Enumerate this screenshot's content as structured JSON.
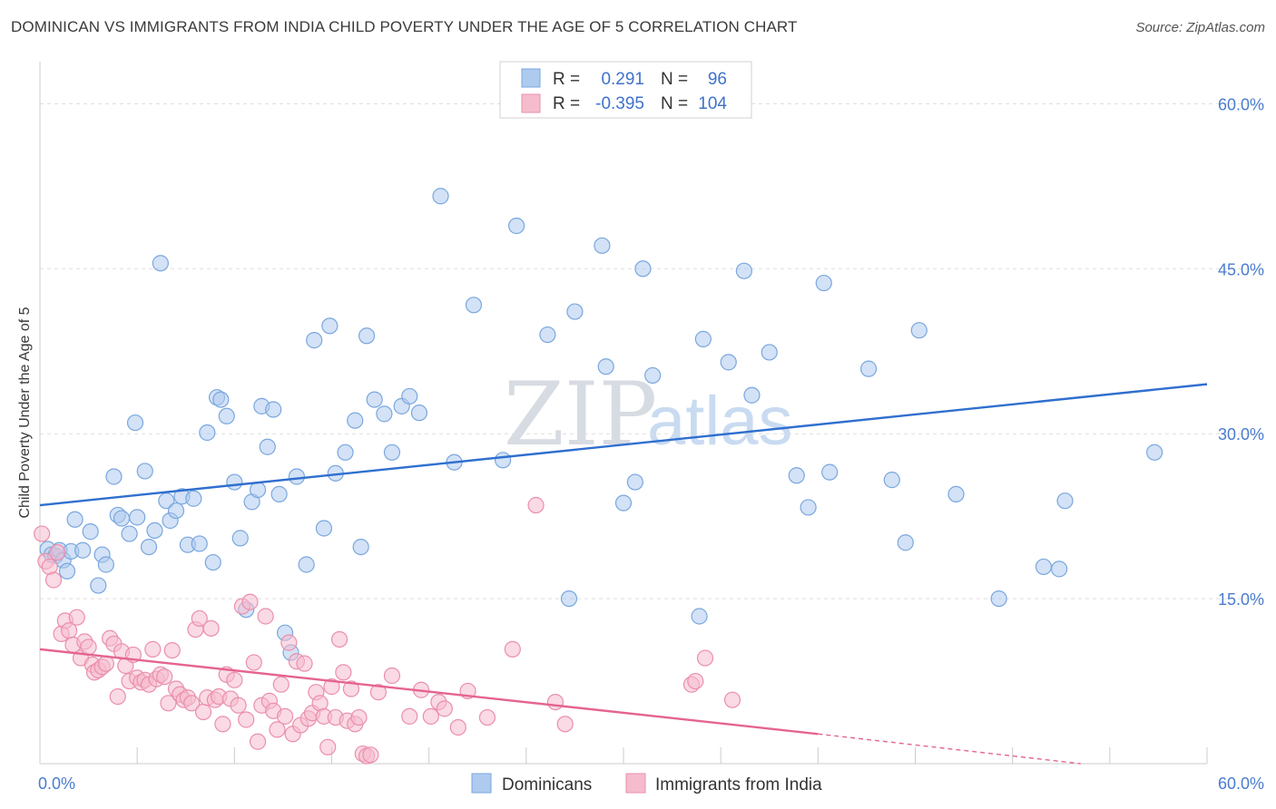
{
  "header": {
    "title": "DOMINICAN VS IMMIGRANTS FROM INDIA CHILD POVERTY UNDER THE AGE OF 5 CORRELATION CHART",
    "source": "Source: ZipAtlas.com"
  },
  "watermark": {
    "zip": "ZIP",
    "atlas": "atlas"
  },
  "colors": {
    "blue_fill": "#aecbef",
    "blue_stroke": "#7aa7de",
    "blue_line": "#2f6fcf",
    "pink_fill": "#f5bccd",
    "pink_stroke": "#ea8fac",
    "pink_line": "#e5648f",
    "tick_text": "#4a7ccf",
    "grid": "#dddddd"
  },
  "legend": {
    "rows": [
      {
        "r_label": "R =",
        "r_value": "0.291",
        "n_label": "N =",
        "n_value": "96"
      },
      {
        "r_label": "R =",
        "r_value": "-0.395",
        "n_label": "N =",
        "n_value": "104"
      }
    ]
  },
  "bottom_legend": {
    "series_a": "Dominicans",
    "series_b": "Immigrants from India"
  },
  "chart_data": {
    "type": "scatter",
    "ylabel": "Child Poverty Under the Age of 5",
    "xlabel": "",
    "xlim": [
      0,
      60
    ],
    "ylim": [
      0,
      63
    ],
    "x_tick_labels": [
      {
        "value": 0,
        "label": "0.0%"
      },
      {
        "value": 60,
        "label": "60.0%"
      }
    ],
    "y_tick_labels": [
      {
        "value": 15,
        "label": "15.0%"
      },
      {
        "value": 30,
        "label": "30.0%"
      },
      {
        "value": 45,
        "label": "45.0%"
      },
      {
        "value": 60,
        "label": "60.0%"
      }
    ],
    "grid": true,
    "legend_position": "top-center",
    "series": [
      {
        "name": "Dominicans",
        "r": 0.291,
        "n": 96,
        "trend": {
          "x": [
            0,
            60
          ],
          "y": [
            23.5,
            34.5
          ]
        },
        "points": [
          [
            0.4,
            19.5
          ],
          [
            0.6,
            19.0
          ],
          [
            0.8,
            18.9
          ],
          [
            1.0,
            19.4
          ],
          [
            1.2,
            18.5
          ],
          [
            1.4,
            17.5
          ],
          [
            1.6,
            19.3
          ],
          [
            1.8,
            22.2
          ],
          [
            2.2,
            19.4
          ],
          [
            2.6,
            21.1
          ],
          [
            3.0,
            16.2
          ],
          [
            3.2,
            19.0
          ],
          [
            3.4,
            18.1
          ],
          [
            3.8,
            26.1
          ],
          [
            4.0,
            22.6
          ],
          [
            4.2,
            22.3
          ],
          [
            4.6,
            20.9
          ],
          [
            4.9,
            31.0
          ],
          [
            5.0,
            22.4
          ],
          [
            5.4,
            26.6
          ],
          [
            5.6,
            19.7
          ],
          [
            5.9,
            21.2
          ],
          [
            6.2,
            45.5
          ],
          [
            6.5,
            23.9
          ],
          [
            6.7,
            22.1
          ],
          [
            7.0,
            23.0
          ],
          [
            7.3,
            24.3
          ],
          [
            7.6,
            19.9
          ],
          [
            7.9,
            24.1
          ],
          [
            8.2,
            20.0
          ],
          [
            8.6,
            30.1
          ],
          [
            8.9,
            18.3
          ],
          [
            9.1,
            33.3
          ],
          [
            9.3,
            33.1
          ],
          [
            9.6,
            31.6
          ],
          [
            10.0,
            25.6
          ],
          [
            10.3,
            20.5
          ],
          [
            10.6,
            14.0
          ],
          [
            10.9,
            23.8
          ],
          [
            11.2,
            24.9
          ],
          [
            11.4,
            32.5
          ],
          [
            11.7,
            28.8
          ],
          [
            12.0,
            32.2
          ],
          [
            12.3,
            24.5
          ],
          [
            12.6,
            11.9
          ],
          [
            12.9,
            10.1
          ],
          [
            13.2,
            26.1
          ],
          [
            13.7,
            18.1
          ],
          [
            14.1,
            38.5
          ],
          [
            14.6,
            21.4
          ],
          [
            14.9,
            39.8
          ],
          [
            15.2,
            26.4
          ],
          [
            15.7,
            28.3
          ],
          [
            16.2,
            31.2
          ],
          [
            16.5,
            19.7
          ],
          [
            16.8,
            38.9
          ],
          [
            17.2,
            33.1
          ],
          [
            17.7,
            31.8
          ],
          [
            18.1,
            28.3
          ],
          [
            18.6,
            32.5
          ],
          [
            19.0,
            33.4
          ],
          [
            19.5,
            31.9
          ],
          [
            20.6,
            51.6
          ],
          [
            21.3,
            27.4
          ],
          [
            22.3,
            41.7
          ],
          [
            23.8,
            27.6
          ],
          [
            24.5,
            48.9
          ],
          [
            26.1,
            39.0
          ],
          [
            27.2,
            15.0
          ],
          [
            27.5,
            41.1
          ],
          [
            28.9,
            47.1
          ],
          [
            29.1,
            36.1
          ],
          [
            30.0,
            23.7
          ],
          [
            30.6,
            25.6
          ],
          [
            31.0,
            45.0
          ],
          [
            31.5,
            35.3
          ],
          [
            33.9,
            13.4
          ],
          [
            34.1,
            38.6
          ],
          [
            35.4,
            36.5
          ],
          [
            36.2,
            44.8
          ],
          [
            36.6,
            33.5
          ],
          [
            37.5,
            37.4
          ],
          [
            38.9,
            26.2
          ],
          [
            39.5,
            23.3
          ],
          [
            40.3,
            43.7
          ],
          [
            40.6,
            26.5
          ],
          [
            42.6,
            35.9
          ],
          [
            43.8,
            25.8
          ],
          [
            44.5,
            20.1
          ],
          [
            45.2,
            39.4
          ],
          [
            47.1,
            24.5
          ],
          [
            49.3,
            15.0
          ],
          [
            51.6,
            17.9
          ],
          [
            52.4,
            17.7
          ],
          [
            52.7,
            23.9
          ],
          [
            57.3,
            28.3
          ]
        ]
      },
      {
        "name": "Immigrants from India",
        "r": -0.395,
        "n": 104,
        "trend": {
          "x": [
            0,
            40
          ],
          "y": [
            10.4,
            2.7
          ]
        },
        "trend_dashed": {
          "x": [
            40,
            53.5
          ],
          "y": [
            2.7,
            0.0
          ]
        },
        "points": [
          [
            0.1,
            20.9
          ],
          [
            0.3,
            18.4
          ],
          [
            0.5,
            17.9
          ],
          [
            0.7,
            16.7
          ],
          [
            0.9,
            19.2
          ],
          [
            1.1,
            11.8
          ],
          [
            1.3,
            13.0
          ],
          [
            1.5,
            12.1
          ],
          [
            1.7,
            10.8
          ],
          [
            1.9,
            13.3
          ],
          [
            2.1,
            9.6
          ],
          [
            2.3,
            11.1
          ],
          [
            2.5,
            10.6
          ],
          [
            2.7,
            9.0
          ],
          [
            2.8,
            8.3
          ],
          [
            3.0,
            8.5
          ],
          [
            3.2,
            8.8
          ],
          [
            3.4,
            9.1
          ],
          [
            3.6,
            11.4
          ],
          [
            3.8,
            10.9
          ],
          [
            4.0,
            6.1
          ],
          [
            4.2,
            10.2
          ],
          [
            4.4,
            8.9
          ],
          [
            4.6,
            7.5
          ],
          [
            4.8,
            9.9
          ],
          [
            5.0,
            7.8
          ],
          [
            5.2,
            7.4
          ],
          [
            5.4,
            7.6
          ],
          [
            5.6,
            7.2
          ],
          [
            5.8,
            10.4
          ],
          [
            6.0,
            7.7
          ],
          [
            6.2,
            8.1
          ],
          [
            6.4,
            7.9
          ],
          [
            6.6,
            5.5
          ],
          [
            6.8,
            10.3
          ],
          [
            7.0,
            6.8
          ],
          [
            7.2,
            6.3
          ],
          [
            7.4,
            5.8
          ],
          [
            7.6,
            6.0
          ],
          [
            7.8,
            5.5
          ],
          [
            8.0,
            12.2
          ],
          [
            8.2,
            13.2
          ],
          [
            8.4,
            4.7
          ],
          [
            8.6,
            6.0
          ],
          [
            8.8,
            12.3
          ],
          [
            9.0,
            5.8
          ],
          [
            9.2,
            6.1
          ],
          [
            9.4,
            3.6
          ],
          [
            9.6,
            8.1
          ],
          [
            9.8,
            5.9
          ],
          [
            10.0,
            7.6
          ],
          [
            10.2,
            5.3
          ],
          [
            10.4,
            14.3
          ],
          [
            10.6,
            4.0
          ],
          [
            10.8,
            14.7
          ],
          [
            11.0,
            9.2
          ],
          [
            11.2,
            2.0
          ],
          [
            11.4,
            5.3
          ],
          [
            11.6,
            13.4
          ],
          [
            11.8,
            5.7
          ],
          [
            12.0,
            4.8
          ],
          [
            12.2,
            3.1
          ],
          [
            12.4,
            7.2
          ],
          [
            12.6,
            4.3
          ],
          [
            12.8,
            11.0
          ],
          [
            13.0,
            2.7
          ],
          [
            13.2,
            9.3
          ],
          [
            13.4,
            3.5
          ],
          [
            13.6,
            9.1
          ],
          [
            13.8,
            4.1
          ],
          [
            14.0,
            4.6
          ],
          [
            14.2,
            6.5
          ],
          [
            14.4,
            5.5
          ],
          [
            14.6,
            4.3
          ],
          [
            14.8,
            1.5
          ],
          [
            15.0,
            7.0
          ],
          [
            15.2,
            4.2
          ],
          [
            15.4,
            11.3
          ],
          [
            15.6,
            8.3
          ],
          [
            15.8,
            3.9
          ],
          [
            16.0,
            6.8
          ],
          [
            16.2,
            3.6
          ],
          [
            16.4,
            4.2
          ],
          [
            16.6,
            0.9
          ],
          [
            16.8,
            0.7
          ],
          [
            17.0,
            0.8
          ],
          [
            17.4,
            6.5
          ],
          [
            18.1,
            8.0
          ],
          [
            19.0,
            4.3
          ],
          [
            19.6,
            6.7
          ],
          [
            20.1,
            4.3
          ],
          [
            20.5,
            5.6
          ],
          [
            20.8,
            5.0
          ],
          [
            21.5,
            3.3
          ],
          [
            22.0,
            6.6
          ],
          [
            23.0,
            4.2
          ],
          [
            24.3,
            10.4
          ],
          [
            25.5,
            23.5
          ],
          [
            26.5,
            5.6
          ],
          [
            27.0,
            3.6
          ],
          [
            33.5,
            7.2
          ],
          [
            33.7,
            7.5
          ],
          [
            34.2,
            9.6
          ],
          [
            35.6,
            5.8
          ]
        ]
      }
    ]
  }
}
